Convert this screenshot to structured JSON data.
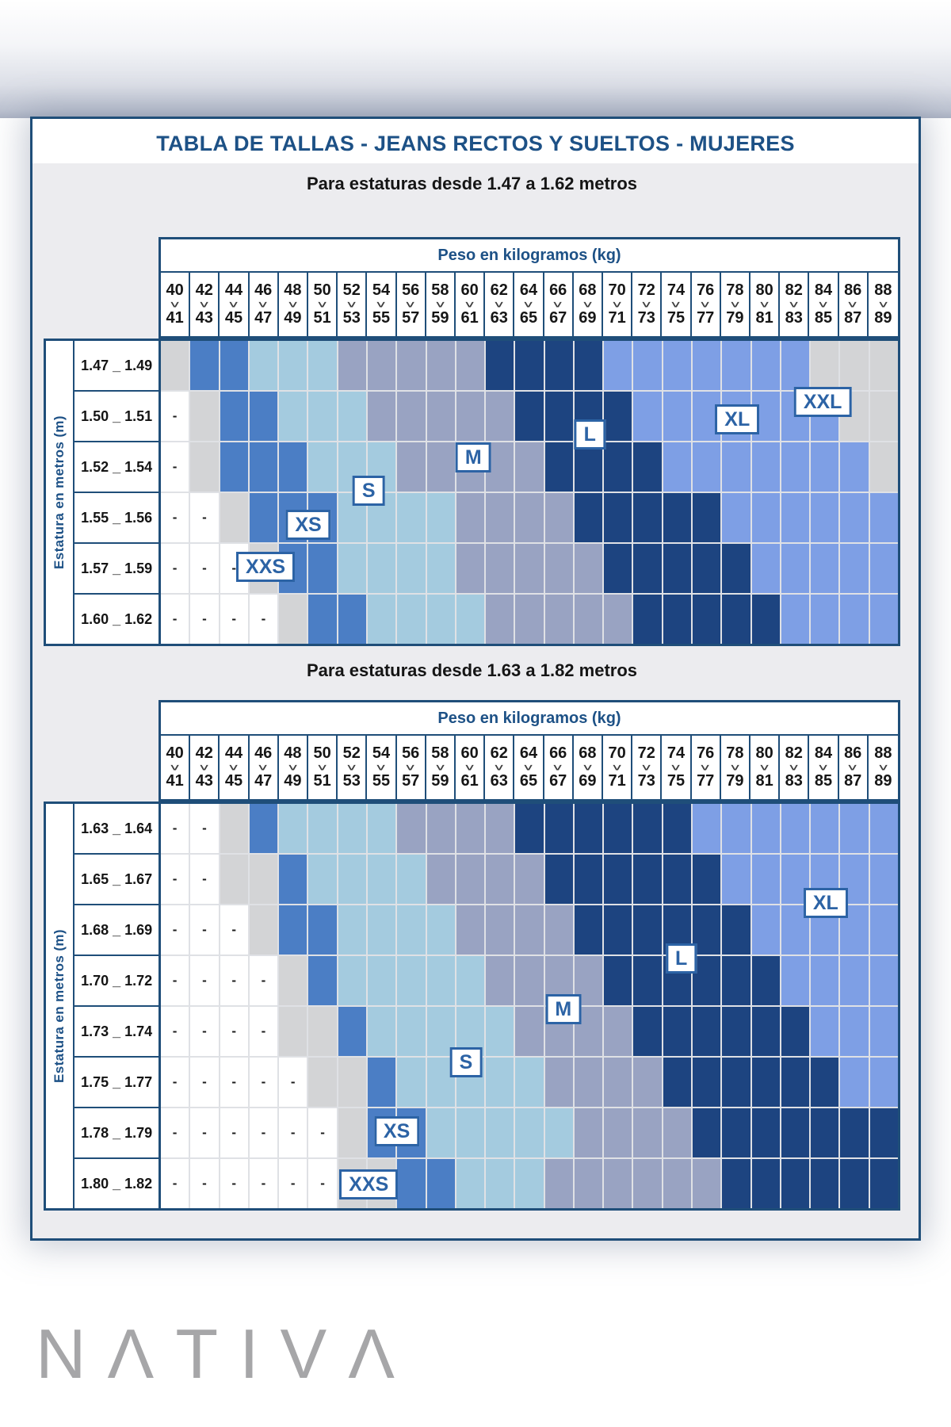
{
  "chart_data": {
    "type": "heatmap",
    "title": "TABLA DE TALLAS - JEANS RECTOS Y SUELTOS - MUJERES",
    "x_axis_label": "Peso en kilogramos (kg)",
    "y_axis_label": "Estatura en metros (m)",
    "na_symbol": "-",
    "x_pairs": [
      [
        "40",
        "41"
      ],
      [
        "42",
        "43"
      ],
      [
        "44",
        "45"
      ],
      [
        "46",
        "47"
      ],
      [
        "48",
        "49"
      ],
      [
        "50",
        "51"
      ],
      [
        "52",
        "53"
      ],
      [
        "54",
        "55"
      ],
      [
        "56",
        "57"
      ],
      [
        "58",
        "59"
      ],
      [
        "60",
        "61"
      ],
      [
        "62",
        "63"
      ],
      [
        "64",
        "65"
      ],
      [
        "66",
        "67"
      ],
      [
        "68",
        "69"
      ],
      [
        "70",
        "71"
      ],
      [
        "72",
        "73"
      ],
      [
        "74",
        "75"
      ],
      [
        "76",
        "77"
      ],
      [
        "78",
        "79"
      ],
      [
        "80",
        "81"
      ],
      [
        "82",
        "83"
      ],
      [
        "84",
        "85"
      ],
      [
        "86",
        "87"
      ],
      [
        "88",
        "89"
      ]
    ],
    "legend": {
      "sizes": [
        "XXS",
        "XS",
        "S",
        "M",
        "L",
        "XL",
        "XXL"
      ],
      "colors": {
        "-": "#ffffff",
        "XXS": "#d3d4d6",
        "XS": "#4b7ec5",
        "S": "#a4cbdf",
        "M": "#99a3c2",
        "L": "#1d4480",
        "XL": "#7e9fe5",
        "XXL": "#d3d4d6"
      }
    },
    "tables": [
      {
        "subtitle": "Para estaturas desde 1.47 a 1.62 metros",
        "y_categories": [
          "1.47 _ 1.49",
          "1.50 _ 1.51",
          "1.52 _ 1.54",
          "1.55 _ 1.56",
          "1.57 _ 1.59",
          "1.60 _ 1.62"
        ],
        "values": [
          [
            "XXS",
            "XS",
            "XS",
            "S",
            "S",
            "S",
            "M",
            "M",
            "M",
            "M",
            "M",
            "L",
            "L",
            "L",
            "L",
            "XL",
            "XL",
            "XL",
            "XL",
            "XL",
            "XL",
            "XL",
            "XXL",
            "XXL",
            "XXL"
          ],
          [
            "-",
            "XXS",
            "XS",
            "XS",
            "S",
            "S",
            "S",
            "M",
            "M",
            "M",
            "M",
            "M",
            "L",
            "L",
            "L",
            "L",
            "XL",
            "XL",
            "XL",
            "XL",
            "XL",
            "XL",
            "XL",
            "XXL",
            "XXL"
          ],
          [
            "-",
            "XXS",
            "XS",
            "XS",
            "XS",
            "S",
            "S",
            "S",
            "M",
            "M",
            "M",
            "M",
            "M",
            "L",
            "L",
            "L",
            "L",
            "XL",
            "XL",
            "XL",
            "XL",
            "XL",
            "XL",
            "XL",
            "XXL"
          ],
          [
            "-",
            "-",
            "XXS",
            "XS",
            "XS",
            "XS",
            "S",
            "S",
            "S",
            "S",
            "M",
            "M",
            "M",
            "M",
            "L",
            "L",
            "L",
            "L",
            "L",
            "XL",
            "XL",
            "XL",
            "XL",
            "XL",
            "XL"
          ],
          [
            "-",
            "-",
            "-",
            "XXS",
            "XS",
            "XS",
            "S",
            "S",
            "S",
            "S",
            "M",
            "M",
            "M",
            "M",
            "M",
            "L",
            "L",
            "L",
            "L",
            "L",
            "XL",
            "XL",
            "XL",
            "XL",
            "XL"
          ],
          [
            "-",
            "-",
            "-",
            "-",
            "XXS",
            "XS",
            "XS",
            "S",
            "S",
            "S",
            "S",
            "M",
            "M",
            "M",
            "M",
            "M",
            "L",
            "L",
            "L",
            "L",
            "L",
            "XL",
            "XL",
            "XL",
            "XL"
          ]
        ],
        "size_labels": [
          {
            "size": "XXS",
            "col": 3.55,
            "row": 4.45
          },
          {
            "size": "XS",
            "col": 5.0,
            "row": 3.62
          },
          {
            "size": "S",
            "col": 7.05,
            "row": 2.95
          },
          {
            "size": "M",
            "col": 10.6,
            "row": 2.3
          },
          {
            "size": "L",
            "col": 14.55,
            "row": 1.85
          },
          {
            "size": "XL",
            "col": 19.55,
            "row": 1.55
          },
          {
            "size": "XXL",
            "col": 22.45,
            "row": 1.2
          }
        ]
      },
      {
        "subtitle": "Para estaturas desde 1.63 a 1.82 metros",
        "y_categories": [
          "1.63 _ 1.64",
          "1.65 _ 1.67",
          "1.68 _ 1.69",
          "1.70 _ 1.72",
          "1.73 _ 1.74",
          "1.75 _ 1.77",
          "1.78 _ 1.79",
          "1.80 _ 1.82"
        ],
        "values": [
          [
            "-",
            "-",
            "XXS",
            "XS",
            "S",
            "S",
            "S",
            "S",
            "M",
            "M",
            "M",
            "M",
            "L",
            "L",
            "L",
            "L",
            "L",
            "L",
            "XL",
            "XL",
            "XL",
            "XL",
            "XL",
            "XL",
            "XL"
          ],
          [
            "-",
            "-",
            "XXS",
            "XXS",
            "XS",
            "S",
            "S",
            "S",
            "S",
            "M",
            "M",
            "M",
            "M",
            "L",
            "L",
            "L",
            "L",
            "L",
            "L",
            "XL",
            "XL",
            "XL",
            "XL",
            "XL",
            "XL"
          ],
          [
            "-",
            "-",
            "-",
            "XXS",
            "XS",
            "XS",
            "S",
            "S",
            "S",
            "S",
            "M",
            "M",
            "M",
            "M",
            "L",
            "L",
            "L",
            "L",
            "L",
            "L",
            "XL",
            "XL",
            "XL",
            "XL",
            "XL"
          ],
          [
            "-",
            "-",
            "-",
            "-",
            "XXS",
            "XS",
            "S",
            "S",
            "S",
            "S",
            "S",
            "M",
            "M",
            "M",
            "M",
            "L",
            "L",
            "L",
            "L",
            "L",
            "L",
            "XL",
            "XL",
            "XL",
            "XL"
          ],
          [
            "-",
            "-",
            "-",
            "-",
            "XXS",
            "XXS",
            "XS",
            "S",
            "S",
            "S",
            "S",
            "S",
            "M",
            "M",
            "M",
            "M",
            "L",
            "L",
            "L",
            "L",
            "L",
            "L",
            "XL",
            "XL",
            "XL"
          ],
          [
            "-",
            "-",
            "-",
            "-",
            "-",
            "XXS",
            "XXS",
            "XS",
            "S",
            "S",
            "S",
            "S",
            "S",
            "M",
            "M",
            "M",
            "M",
            "L",
            "L",
            "L",
            "L",
            "L",
            "L",
            "XL",
            "XL"
          ],
          [
            "-",
            "-",
            "-",
            "-",
            "-",
            "-",
            "XXS",
            "XS",
            "XS",
            "S",
            "S",
            "S",
            "S",
            "S",
            "M",
            "M",
            "M",
            "M",
            "L",
            "L",
            "L",
            "L",
            "L",
            "L",
            "L"
          ],
          [
            "-",
            "-",
            "-",
            "-",
            "-",
            "-",
            "XXS",
            "XXS",
            "XS",
            "XS",
            "S",
            "S",
            "S",
            "M",
            "M",
            "M",
            "M",
            "M",
            "M",
            "L",
            "L",
            "L",
            "L",
            "L",
            "L"
          ]
        ],
        "size_labels": [
          {
            "size": "XXS",
            "col": 7.05,
            "row": 7.5
          },
          {
            "size": "XS",
            "col": 8.0,
            "row": 6.45
          },
          {
            "size": "S",
            "col": 10.35,
            "row": 5.1
          },
          {
            "size": "M",
            "col": 13.65,
            "row": 4.05
          },
          {
            "size": "L",
            "col": 17.65,
            "row": 3.05
          },
          {
            "size": "XL",
            "col": 22.55,
            "row": 1.95
          }
        ]
      }
    ]
  },
  "brand": {
    "name": "NATIVA",
    "display": "NΛTIVΛ"
  },
  "icons": {
    "weight_separator": "chevron-down-icon",
    "glyph": "∨"
  }
}
